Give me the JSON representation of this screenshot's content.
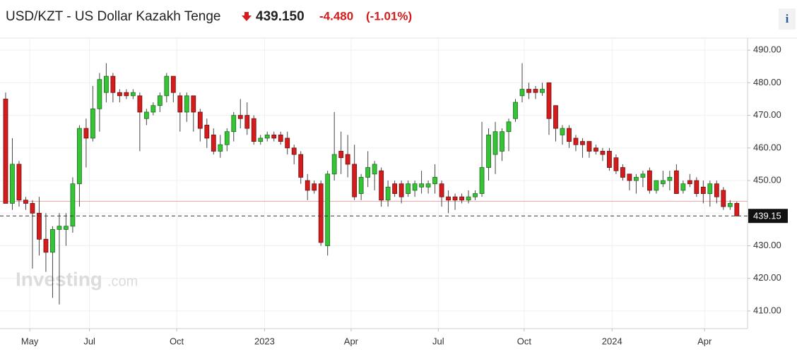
{
  "header": {
    "title": "USD/KZT - US Dollar Kazakh Tenge",
    "price": "439.150",
    "change": "-4.480",
    "change_pct": "(-1.01%)"
  },
  "watermark": {
    "brand": "Investing",
    "suffix": ".com"
  },
  "info_button": "i",
  "chart_data": {
    "type": "candlestick",
    "up_color": "#35c435",
    "down_color": "#d41c1c",
    "reference_line": 443.63,
    "xlim": [
      -0.84,
      110.6
    ],
    "xticks": [
      {
        "value": 3.6,
        "label": "May"
      },
      {
        "value": 12.5,
        "label": "Jul"
      },
      {
        "value": 25.5,
        "label": "Oct"
      },
      {
        "value": 38.6,
        "label": "2023"
      },
      {
        "value": 51.5,
        "label": "Apr"
      },
      {
        "value": 64.5,
        "label": "Jul"
      },
      {
        "value": 77.3,
        "label": "Oct"
      },
      {
        "value": 90.4,
        "label": "2024"
      },
      {
        "value": 104.2,
        "label": "Apr"
      }
    ],
    "ylim": [
      404.6,
      493.7
    ],
    "yticks": [
      {
        "value": 410,
        "label": "410.00"
      },
      {
        "value": 420,
        "label": "420.00"
      },
      {
        "value": 430,
        "label": "430.00"
      },
      {
        "value": 440,
        "label": "440.00"
      },
      {
        "value": 450,
        "label": "450.00"
      },
      {
        "value": 460,
        "label": "460.00"
      },
      {
        "value": 470,
        "label": "470.00"
      },
      {
        "value": 480,
        "label": "480.00"
      },
      {
        "value": 490,
        "label": "490.00"
      }
    ],
    "grid": true,
    "open": [
      475,
      443,
      455,
      444,
      443,
      440,
      432,
      428,
      435,
      435,
      436,
      449,
      466,
      463,
      472,
      477,
      482,
      477,
      477,
      476,
      476,
      469,
      471,
      473,
      476,
      482,
      476,
      471,
      476,
      471,
      467,
      464,
      459,
      461,
      465,
      470,
      470,
      469,
      462,
      463,
      464,
      464,
      463,
      460,
      458,
      450,
      449,
      449,
      430,
      452,
      459,
      458,
      455,
      446,
      451,
      452,
      453,
      444,
      449,
      449,
      446,
      447,
      448,
      448,
      449,
      449,
      445,
      445,
      445,
      444,
      445,
      446,
      454,
      458,
      459,
      465,
      469,
      476,
      478,
      478,
      477,
      480,
      473,
      464,
      466,
      463,
      462,
      462,
      460,
      459,
      459,
      457,
      454,
      452,
      450,
      451,
      453,
      447,
      449,
      450,
      453,
      447,
      450,
      450,
      448,
      446,
      449,
      447,
      442,
      443
    ],
    "high": [
      477,
      463,
      456,
      445,
      444,
      445,
      440,
      436,
      440,
      440,
      451,
      467,
      469,
      479,
      483,
      486,
      483,
      478,
      478,
      478,
      477,
      472,
      474,
      477,
      483,
      482,
      477,
      477,
      476,
      472,
      469,
      466,
      464,
      466,
      471,
      475,
      474,
      470,
      464,
      465,
      465,
      465,
      465,
      461,
      459,
      452,
      450,
      450,
      453,
      471,
      465,
      464,
      461,
      452,
      459,
      456,
      454,
      450,
      450,
      450,
      450,
      450,
      453,
      450,
      455,
      450,
      447,
      446,
      446,
      447,
      447,
      468,
      466,
      468,
      466,
      469,
      475,
      486,
      480,
      479,
      480,
      480,
      473,
      467,
      467,
      464,
      463,
      462,
      461,
      460,
      460,
      458,
      455,
      452,
      452,
      453,
      454,
      450,
      453,
      453,
      455,
      450,
      452,
      451,
      450,
      450,
      450,
      448,
      444,
      443.5
    ],
    "low": [
      443,
      441,
      442,
      441,
      423,
      427,
      422,
      414,
      412,
      430,
      434,
      442,
      454,
      462,
      465,
      474,
      474,
      474,
      475,
      475,
      459,
      467,
      470,
      471,
      474,
      474,
      465,
      468,
      465,
      462,
      460,
      458,
      457,
      459,
      462,
      466,
      464,
      461,
      461,
      462,
      462,
      461,
      458,
      455,
      449,
      444,
      446,
      430,
      427,
      450,
      452,
      451,
      444,
      444,
      448,
      447,
      442,
      442,
      445,
      443,
      445,
      445,
      446,
      446,
      446,
      442,
      440,
      441,
      443,
      443,
      444,
      445,
      450,
      452,
      456,
      459,
      468,
      474,
      475,
      475,
      476,
      464,
      462,
      461,
      460,
      459,
      457,
      457,
      458,
      456,
      453,
      452,
      450,
      447,
      446,
      448,
      446,
      446,
      448,
      447,
      446,
      446,
      448,
      445,
      443,
      442,
      443,
      441,
      441,
      439
    ],
    "close": [
      443,
      455,
      444,
      443,
      440,
      432,
      428,
      435,
      436,
      436,
      449,
      466,
      463,
      472,
      481,
      482,
      477,
      476,
      476,
      477,
      471,
      471,
      473,
      476,
      482,
      477,
      471,
      476,
      471,
      466,
      463,
      459,
      461,
      465,
      470,
      469,
      466,
      462,
      463,
      464,
      463,
      462,
      460,
      458,
      451,
      447,
      447,
      431,
      452,
      458,
      457,
      455,
      445,
      451,
      454,
      455,
      444,
      448,
      446,
      445,
      449,
      449,
      449,
      449,
      451,
      445,
      444,
      444,
      444,
      445,
      446,
      454,
      464,
      465,
      465,
      468,
      474,
      478,
      477,
      477,
      478,
      469,
      466,
      466,
      462,
      461,
      461,
      459,
      459,
      458,
      454,
      453,
      451,
      450,
      451,
      452,
      447,
      450,
      450,
      451,
      446,
      449,
      449,
      446,
      446,
      449,
      445,
      442,
      443,
      439.15
    ]
  }
}
